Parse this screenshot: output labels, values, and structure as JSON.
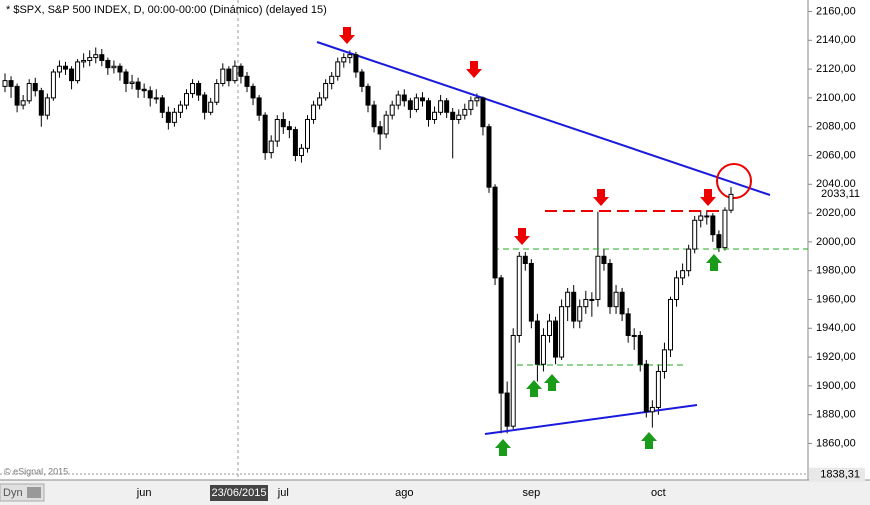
{
  "chart_data": {
    "type": "candlestick",
    "title": "* $SPX, S&P 500 INDEX, D, 00:00-00:00 (Dinámico) (delayed 15)",
    "watermark": "© eSignal, 2015",
    "mode_label": "Dyn",
    "crosshair_label": "23/06/2015",
    "up_color": "#ffffff",
    "down_color": "#000000",
    "ylim": [
      1836,
      2168
    ],
    "yticks": [
      {
        "value": 2160,
        "label": "2160,00"
      },
      {
        "value": 2140,
        "label": "2140,00"
      },
      {
        "value": 2120,
        "label": "2120,00"
      },
      {
        "value": 2100,
        "label": "2100,00"
      },
      {
        "value": 2080,
        "label": "2080,00"
      },
      {
        "value": 2060,
        "label": "2060,00"
      },
      {
        "value": 2040,
        "label": "2040,00"
      },
      {
        "value": 2020,
        "label": "2020,00"
      },
      {
        "value": 2000,
        "label": "2000,00"
      },
      {
        "value": 1980,
        "label": "1980,00"
      },
      {
        "value": 1960,
        "label": "1960,00"
      },
      {
        "value": 1940,
        "label": "1940,00"
      },
      {
        "value": 1920,
        "label": "1920,00"
      },
      {
        "value": 1900,
        "label": "1900,00"
      },
      {
        "value": 1880,
        "label": "1880,00"
      },
      {
        "value": 1860,
        "label": "1860,00"
      }
    ],
    "last_price": {
      "value": 2033.11,
      "label": "2033,11"
    },
    "cursor_price": {
      "value": 1838.31,
      "label": "1838,31"
    },
    "categories": [
      null,
      null,
      null,
      null,
      null,
      null,
      null,
      null,
      null,
      null,
      null,
      null,
      null,
      null,
      null,
      null,
      null,
      null,
      null,
      null,
      null,
      null,
      null,
      "jun",
      null,
      null,
      null,
      null,
      null,
      null,
      null,
      null,
      null,
      null,
      null,
      null,
      null,
      null,
      null,
      null,
      null,
      null,
      null,
      null,
      null,
      null,
      "jul",
      null,
      null,
      null,
      null,
      null,
      null,
      null,
      null,
      null,
      null,
      null,
      null,
      null,
      null,
      null,
      null,
      null,
      null,
      null,
      "ago",
      null,
      null,
      null,
      null,
      null,
      null,
      null,
      null,
      null,
      null,
      null,
      null,
      null,
      null,
      null,
      null,
      null,
      null,
      null,
      null,
      "sep",
      null,
      null,
      null,
      null,
      null,
      null,
      null,
      null,
      null,
      null,
      null,
      null,
      null,
      null,
      null,
      null,
      null,
      null,
      null,
      null,
      "oct",
      null,
      null,
      null,
      null,
      null,
      null,
      null,
      null,
      null,
      null,
      null,
      null
    ],
    "ohlc": [
      [
        2108,
        2117,
        2104,
        2112
      ],
      [
        2112,
        2115,
        2100,
        2108
      ],
      [
        2108,
        2110,
        2090,
        2095
      ],
      [
        2095,
        2102,
        2092,
        2098
      ],
      [
        2098,
        2113,
        2096,
        2110
      ],
      [
        2110,
        2114,
        2101,
        2105
      ],
      [
        2105,
        2107,
        2080,
        2088
      ],
      [
        2088,
        2103,
        2085,
        2100
      ],
      [
        2100,
        2120,
        2098,
        2118
      ],
      [
        2118,
        2126,
        2114,
        2122
      ],
      [
        2122,
        2125,
        2116,
        2120
      ],
      [
        2120,
        2122,
        2106,
        2112
      ],
      [
        2112,
        2127,
        2110,
        2125
      ],
      [
        2125,
        2131,
        2121,
        2126
      ],
      [
        2126,
        2133,
        2122,
        2128
      ],
      [
        2128,
        2135,
        2124,
        2130
      ],
      [
        2130,
        2134,
        2122,
        2126
      ],
      [
        2126,
        2128,
        2116,
        2121
      ],
      [
        2121,
        2126,
        2117,
        2122
      ],
      [
        2122,
        2124,
        2112,
        2118
      ],
      [
        2118,
        2120,
        2104,
        2110
      ],
      [
        2110,
        2116,
        2106,
        2111
      ],
      [
        2111,
        2114,
        2100,
        2106
      ],
      [
        2106,
        2110,
        2100,
        2105
      ],
      [
        2105,
        2108,
        2094,
        2100
      ],
      [
        2100,
        2106,
        2096,
        2100
      ],
      [
        2100,
        2102,
        2086,
        2090
      ],
      [
        2090,
        2094,
        2078,
        2083
      ],
      [
        2083,
        2093,
        2080,
        2090
      ],
      [
        2090,
        2098,
        2086,
        2095
      ],
      [
        2095,
        2106,
        2092,
        2103
      ],
      [
        2103,
        2113,
        2100,
        2110
      ],
      [
        2110,
        2112,
        2098,
        2102
      ],
      [
        2102,
        2104,
        2085,
        2090
      ],
      [
        2090,
        2100,
        2088,
        2097
      ],
      [
        2097,
        2113,
        2095,
        2110
      ],
      [
        2110,
        2124,
        2108,
        2120
      ],
      [
        2120,
        2122,
        2108,
        2112
      ],
      [
        2112,
        2126,
        2110,
        2122
      ],
      [
        2122,
        2124,
        2110,
        2115
      ],
      [
        2115,
        2118,
        2104,
        2108
      ],
      [
        2108,
        2110,
        2095,
        2100
      ],
      [
        2100,
        2102,
        2084,
        2088
      ],
      [
        2088,
        2090,
        2057,
        2062
      ],
      [
        2062,
        2074,
        2058,
        2070
      ],
      [
        2070,
        2088,
        2066,
        2085
      ],
      [
        2085,
        2090,
        2075,
        2080
      ],
      [
        2080,
        2084,
        2072,
        2078
      ],
      [
        2078,
        2080,
        2056,
        2060
      ],
      [
        2060,
        2068,
        2055,
        2065
      ],
      [
        2065,
        2088,
        2062,
        2085
      ],
      [
        2085,
        2098,
        2082,
        2095
      ],
      [
        2095,
        2104,
        2092,
        2100
      ],
      [
        2100,
        2113,
        2098,
        2110
      ],
      [
        2110,
        2118,
        2106,
        2115
      ],
      [
        2115,
        2128,
        2112,
        2125
      ],
      [
        2125,
        2131,
        2121,
        2128
      ],
      [
        2128,
        2133,
        2124,
        2130
      ],
      [
        2130,
        2132,
        2114,
        2118
      ],
      [
        2118,
        2120,
        2104,
        2108
      ],
      [
        2108,
        2110,
        2090,
        2095
      ],
      [
        2095,
        2098,
        2076,
        2080
      ],
      [
        2080,
        2084,
        2064,
        2075
      ],
      [
        2075,
        2091,
        2072,
        2088
      ],
      [
        2088,
        2098,
        2085,
        2095
      ],
      [
        2095,
        2105,
        2092,
        2102
      ],
      [
        2102,
        2106,
        2094,
        2098
      ],
      [
        2098,
        2100,
        2086,
        2092
      ],
      [
        2092,
        2103,
        2090,
        2100
      ],
      [
        2100,
        2104,
        2094,
        2098
      ],
      [
        2098,
        2100,
        2080,
        2085
      ],
      [
        2085,
        2094,
        2082,
        2090
      ],
      [
        2090,
        2102,
        2088,
        2098
      ],
      [
        2098,
        2100,
        2086,
        2090
      ],
      [
        2090,
        2093,
        2058,
        2085
      ],
      [
        2085,
        2092,
        2082,
        2088
      ],
      [
        2088,
        2096,
        2085,
        2092
      ],
      [
        2092,
        2101,
        2088,
        2098
      ],
      [
        2098,
        2103,
        2094,
        2100
      ],
      [
        2100,
        2101,
        2074,
        2080
      ],
      [
        2080,
        2082,
        2034,
        2038
      ],
      [
        2038,
        2040,
        1970,
        1975
      ],
      [
        1975,
        1977,
        1867,
        1895
      ],
      [
        1895,
        1903,
        1867,
        1872
      ],
      [
        1872,
        1940,
        1870,
        1935
      ],
      [
        1935,
        1993,
        1930,
        1990
      ],
      [
        1990,
        1993,
        1980,
        1985
      ],
      [
        1985,
        1988,
        1940,
        1945
      ],
      [
        1945,
        1950,
        1903,
        1915
      ],
      [
        1915,
        1940,
        1910,
        1935
      ],
      [
        1935,
        1950,
        1930,
        1945
      ],
      [
        1945,
        1948,
        1915,
        1920
      ],
      [
        1920,
        1960,
        1918,
        1955
      ],
      [
        1955,
        1968,
        1945,
        1965
      ],
      [
        1965,
        1970,
        1940,
        1945
      ],
      [
        1945,
        1960,
        1940,
        1955
      ],
      [
        1955,
        1966,
        1950,
        1960
      ],
      [
        1960,
        1965,
        1948,
        1960
      ],
      [
        1960,
        2021,
        1955,
        1990
      ],
      [
        1990,
        1995,
        1980,
        1985
      ],
      [
        1985,
        1988,
        1950,
        1955
      ],
      [
        1955,
        1970,
        1950,
        1965
      ],
      [
        1965,
        1968,
        1945,
        1950
      ],
      [
        1950,
        1954,
        1930,
        1935
      ],
      [
        1935,
        1940,
        1925,
        1935
      ],
      [
        1935,
        1938,
        1910,
        1915
      ],
      [
        1915,
        1918,
        1878,
        1882
      ],
      [
        1882,
        1890,
        1871,
        1885
      ],
      [
        1885,
        1915,
        1880,
        1910
      ],
      [
        1910,
        1930,
        1905,
        1925
      ],
      [
        1925,
        1962,
        1920,
        1960
      ],
      [
        1960,
        1980,
        1955,
        1975
      ],
      [
        1975,
        1985,
        1970,
        1980
      ],
      [
        1980,
        1998,
        1976,
        1995
      ],
      [
        1995,
        2018,
        1992,
        2015
      ],
      [
        2015,
        2022,
        2010,
        2018
      ],
      [
        2018,
        2022,
        2012,
        2018
      ],
      [
        2018,
        2020,
        2000,
        2005
      ],
      [
        2005,
        2008,
        1993,
        1996
      ],
      [
        1996,
        2024,
        1994,
        2022
      ],
      [
        2022,
        2038,
        2020,
        2033
      ]
    ]
  }
}
